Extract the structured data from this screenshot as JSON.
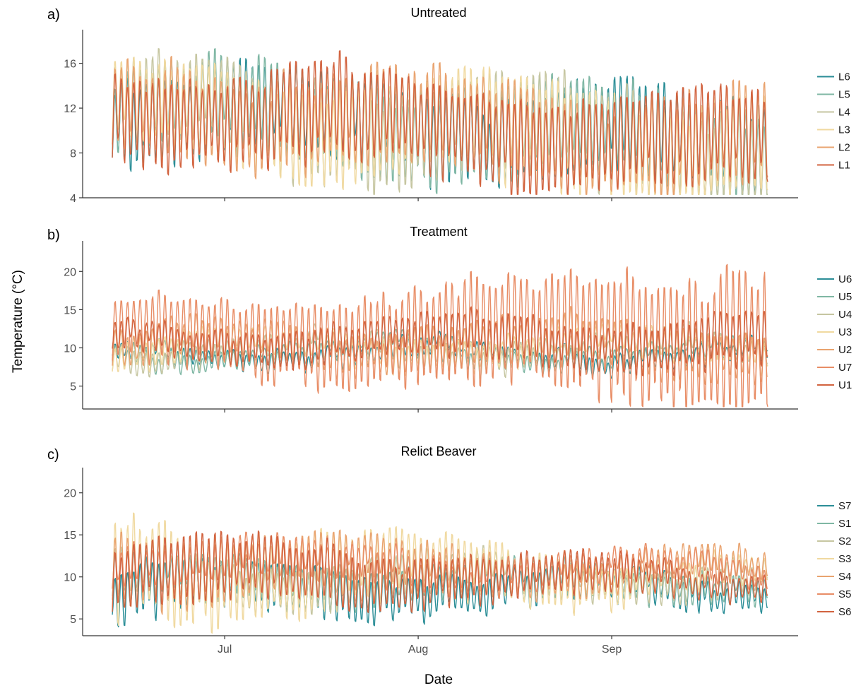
{
  "figure": {
    "ylabel": "Temperature (°C)",
    "xlabel": "Date"
  },
  "chart_data": [
    {
      "type": "line",
      "panel_label": "a)",
      "title": "Untreated",
      "x_range": [
        "2023-06-13",
        "2023-09-26"
      ],
      "ylim": [
        4,
        19
      ],
      "yticks": [
        4,
        8,
        12,
        16
      ],
      "xticks": [
        {
          "date": "2023-07-01",
          "label": ""
        },
        {
          "date": "2023-08-01",
          "label": ""
        },
        {
          "date": "2023-09-01",
          "label": ""
        }
      ],
      "grid": false,
      "legend_position": "right",
      "series": [
        {
          "name": "L6",
          "color": "#2b8e97",
          "mean": 12.2,
          "trend": -0.035,
          "amplitude": 3.5,
          "amp_trend": 0.004,
          "seed": 11
        },
        {
          "name": "L5",
          "color": "#7fb7a4",
          "mean": 12.2,
          "trend": -0.035,
          "amplitude": 3.6,
          "amp_trend": 0.004,
          "seed": 12
        },
        {
          "name": "L4",
          "color": "#c6c6a1",
          "mean": 12.1,
          "trend": -0.036,
          "amplitude": 3.7,
          "amp_trend": 0.005,
          "seed": 13
        },
        {
          "name": "L3",
          "color": "#f0d9a0",
          "mean": 12.1,
          "trend": -0.036,
          "amplitude": 3.8,
          "amp_trend": 0.006,
          "seed": 14
        },
        {
          "name": "L2",
          "color": "#e9a36f",
          "mean": 12.2,
          "trend": -0.035,
          "amplitude": 3.6,
          "amp_trend": 0.004,
          "seed": 15
        },
        {
          "name": "L1",
          "color": "#d2633f",
          "mean": 12.2,
          "trend": -0.035,
          "amplitude": 3.5,
          "amp_trend": 0.004,
          "seed": 16
        }
      ]
    },
    {
      "type": "line",
      "panel_label": "b)",
      "title": "Treatment",
      "x_range": [
        "2023-06-13",
        "2023-09-26"
      ],
      "ylim": [
        2,
        24
      ],
      "yticks": [
        5,
        10,
        15,
        20
      ],
      "xticks": [
        {
          "date": "2023-07-01",
          "label": ""
        },
        {
          "date": "2023-08-01",
          "label": ""
        },
        {
          "date": "2023-09-01",
          "label": ""
        }
      ],
      "grid": false,
      "legend_position": "right",
      "series": [
        {
          "name": "U6",
          "color": "#2b8e97",
          "mean": 9.3,
          "trend": 0.0,
          "amplitude": 1.0,
          "amp_trend": 0.0,
          "seed": 21
        },
        {
          "name": "U5",
          "color": "#7fb7a4",
          "mean": 9.4,
          "trend": 0.0,
          "amplitude": 0.9,
          "amp_trend": 0.0,
          "seed": 22
        },
        {
          "name": "U4",
          "color": "#c6c6a1",
          "mean": 9.8,
          "trend": 0.0,
          "amplitude": 1.4,
          "amp_trend": 0.0,
          "seed": 23
        },
        {
          "name": "U3",
          "color": "#f0d9a0",
          "mean": 10.0,
          "trend": 0.0,
          "amplitude": 1.6,
          "amp_trend": 0.0,
          "seed": 24
        },
        {
          "name": "U2",
          "color": "#e9a36f",
          "mean": 10.3,
          "trend": 0.0,
          "amplitude": 2.0,
          "amp_trend": 0.01,
          "seed": 25
        },
        {
          "name": "U7",
          "color": "#e88d66",
          "mean": 11.6,
          "trend": 0.0,
          "amplitude": 3.6,
          "amp_trend": 0.05,
          "seed": 26
        },
        {
          "name": "U1",
          "color": "#d2633f",
          "mean": 11.0,
          "trend": 0.0,
          "amplitude": 1.6,
          "amp_trend": 0.015,
          "seed": 27
        }
      ]
    },
    {
      "type": "line",
      "panel_label": "c)",
      "title": "Relict Beaver",
      "x_range": [
        "2023-06-13",
        "2023-09-26"
      ],
      "ylim": [
        3,
        23
      ],
      "yticks": [
        5,
        10,
        15,
        20
      ],
      "xticks": [
        {
          "date": "2023-07-01",
          "label": "Jul"
        },
        {
          "date": "2023-08-01",
          "label": "Aug"
        },
        {
          "date": "2023-09-01",
          "label": "Sep"
        }
      ],
      "grid": false,
      "legend_position": "right",
      "series": [
        {
          "name": "S7",
          "color": "#2b8e97",
          "mean": 8.5,
          "trend": 0.0,
          "amplitude": 2.8,
          "amp_trend": -0.015,
          "seed": 31
        },
        {
          "name": "S1",
          "color": "#7fb7a4",
          "mean": 9.5,
          "trend": 0.0,
          "amplitude": 2.5,
          "amp_trend": -0.012,
          "seed": 32
        },
        {
          "name": "S2",
          "color": "#c6c6a1",
          "mean": 10.0,
          "trend": 0.0,
          "amplitude": 2.6,
          "amp_trend": -0.012,
          "seed": 33
        },
        {
          "name": "S3",
          "color": "#f0d9a0",
          "mean": 11.0,
          "trend": -0.01,
          "amplitude": 5.5,
          "amp_trend": -0.04,
          "seed": 34
        },
        {
          "name": "S4",
          "color": "#e9a36f",
          "mean": 11.5,
          "trend": -0.01,
          "amplitude": 3.5,
          "amp_trend": -0.02,
          "seed": 35
        },
        {
          "name": "S5",
          "color": "#e88d66",
          "mean": 12.5,
          "trend": -0.02,
          "amplitude": 2.2,
          "amp_trend": -0.01,
          "seed": 36
        },
        {
          "name": "S6",
          "color": "#d2633f",
          "mean": 11.0,
          "trend": -0.015,
          "amplitude": 3.8,
          "amp_trend": -0.025,
          "seed": 37
        }
      ]
    }
  ]
}
